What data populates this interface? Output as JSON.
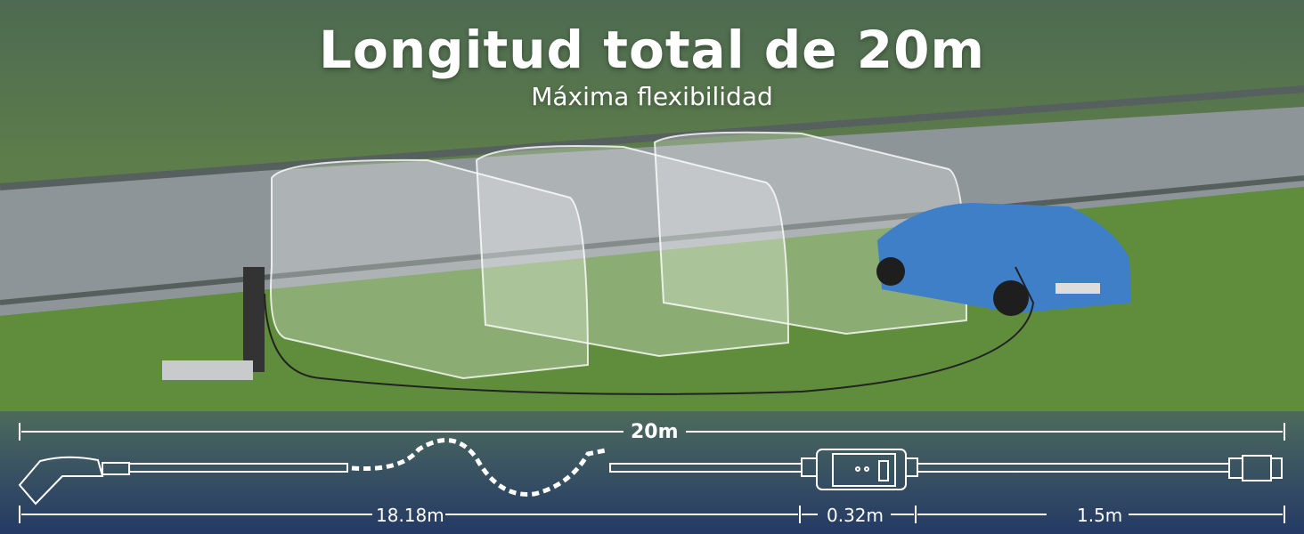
{
  "headline": "Longitud total de 20m",
  "subheadline": "Máxima flexibilidad",
  "dimensions": {
    "total": "20m",
    "segment_cable": "18.18m",
    "segment_control_box": "0.32m",
    "segment_plug_cable": "1.5m"
  },
  "colors": {
    "car": "#3f7fc8",
    "grass": "#5d8a3a",
    "road": "#8f9699",
    "band": "#243a64",
    "text": "#ffffff"
  }
}
